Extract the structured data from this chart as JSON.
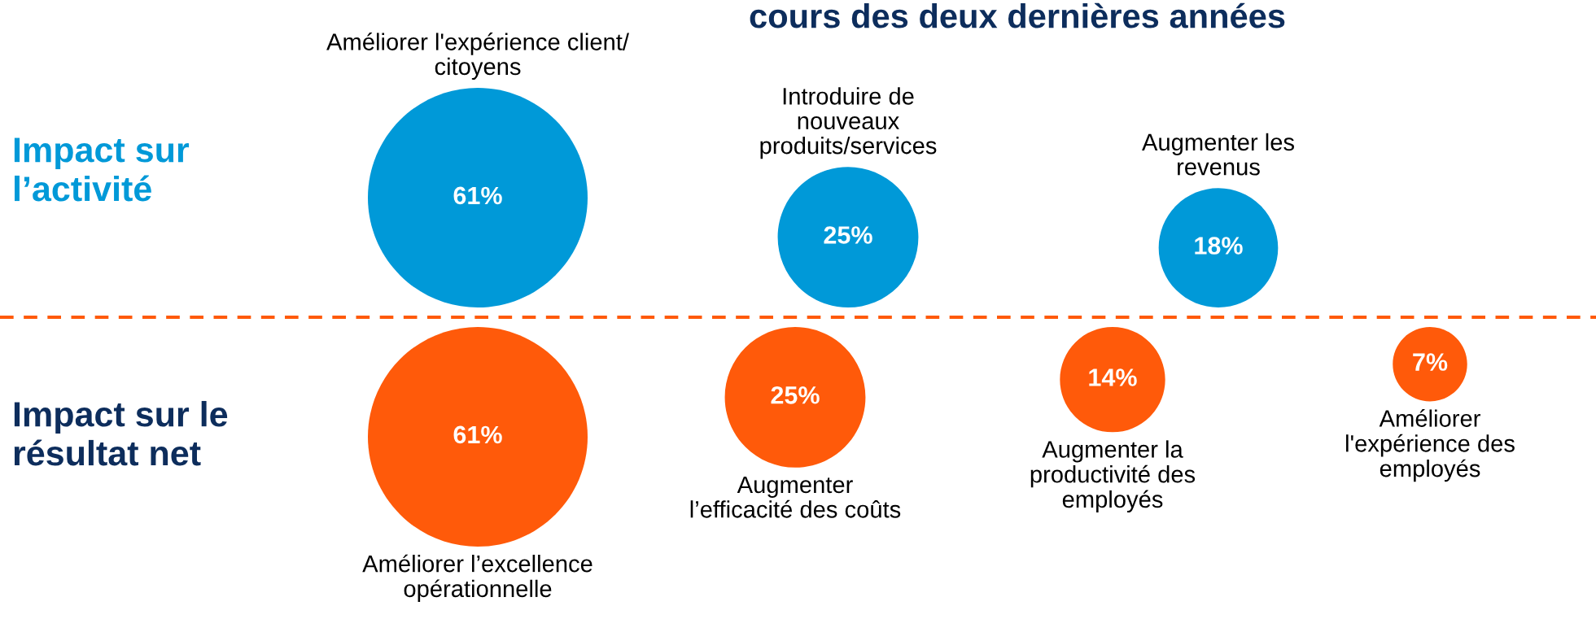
{
  "chart_data": [
    {
      "type": "other",
      "title": "cours des deux dernières années",
      "ylabel": "Impact sur\nl’activité",
      "categories": [
        "Améliorer l'expérience client/\ncitoyens",
        "Introduire de\nnouveaux\nproduits/services",
        "Augmenter les\nrevenus"
      ],
      "series": [
        {
          "color": "#0099d8",
          "values": [
            61,
            25,
            18
          ],
          "value_labels": [
            "61%",
            "25%",
            "18%"
          ]
        }
      ]
    },
    {
      "type": "other",
      "ylabel": "Impact sur le\nrésultat net",
      "categories": [
        "Améliorer l’excellence\nopérationnelle",
        "Augmenter\nl’efficacité des coûts",
        "Augmenter la\nproductivité des\nemployés",
        "Améliorer\nl'expérience des\nemployés"
      ],
      "series": [
        {
          "color": "#ff5a0a",
          "values": [
            61,
            25,
            14,
            7
          ],
          "value_labels": [
            "61%",
            "25%",
            "14%",
            "7%"
          ]
        }
      ]
    }
  ]
}
